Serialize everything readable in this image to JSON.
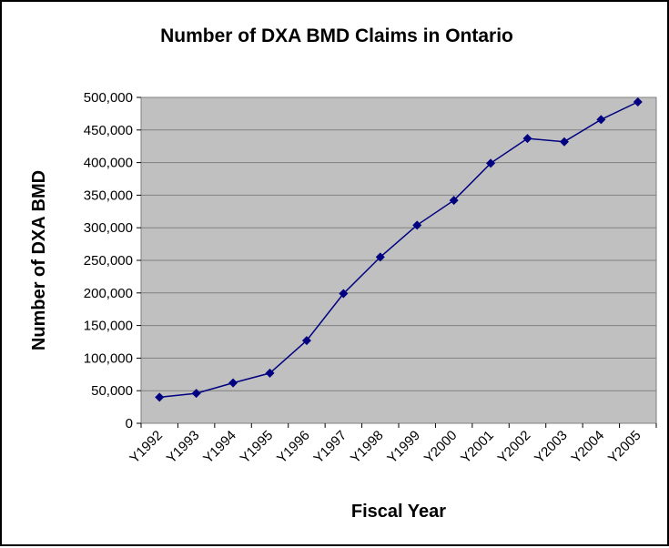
{
  "chart_data": {
    "type": "line",
    "title": "Number of DXA BMD Claims in Ontario",
    "xlabel": "Fiscal Year",
    "ylabel": "Number of DXA BMD",
    "categories": [
      "Y1992",
      "Y1993",
      "Y1994",
      "Y1995",
      "Y1996",
      "Y1997",
      "Y1998",
      "Y1999",
      "Y2000",
      "Y2001",
      "Y2002",
      "Y2003",
      "Y2004",
      "Y2005"
    ],
    "series": [
      {
        "values": [
          40000,
          46000,
          62000,
          77000,
          127000,
          199000,
          255000,
          304000,
          342000,
          399000,
          437000,
          432000,
          466000,
          493000
        ]
      }
    ],
    "yticks": [
      "0",
      "50,000",
      "100,000",
      "150,000",
      "200,000",
      "250,000",
      "300,000",
      "350,000",
      "400,000",
      "450,000",
      "500,000"
    ],
    "ylim": [
      0,
      500000
    ],
    "grid": true,
    "legend": "none",
    "colors": {
      "line": "#000080",
      "marker": "#000080",
      "plot_bg": "#c0c0c0",
      "grid": "#808080"
    }
  }
}
